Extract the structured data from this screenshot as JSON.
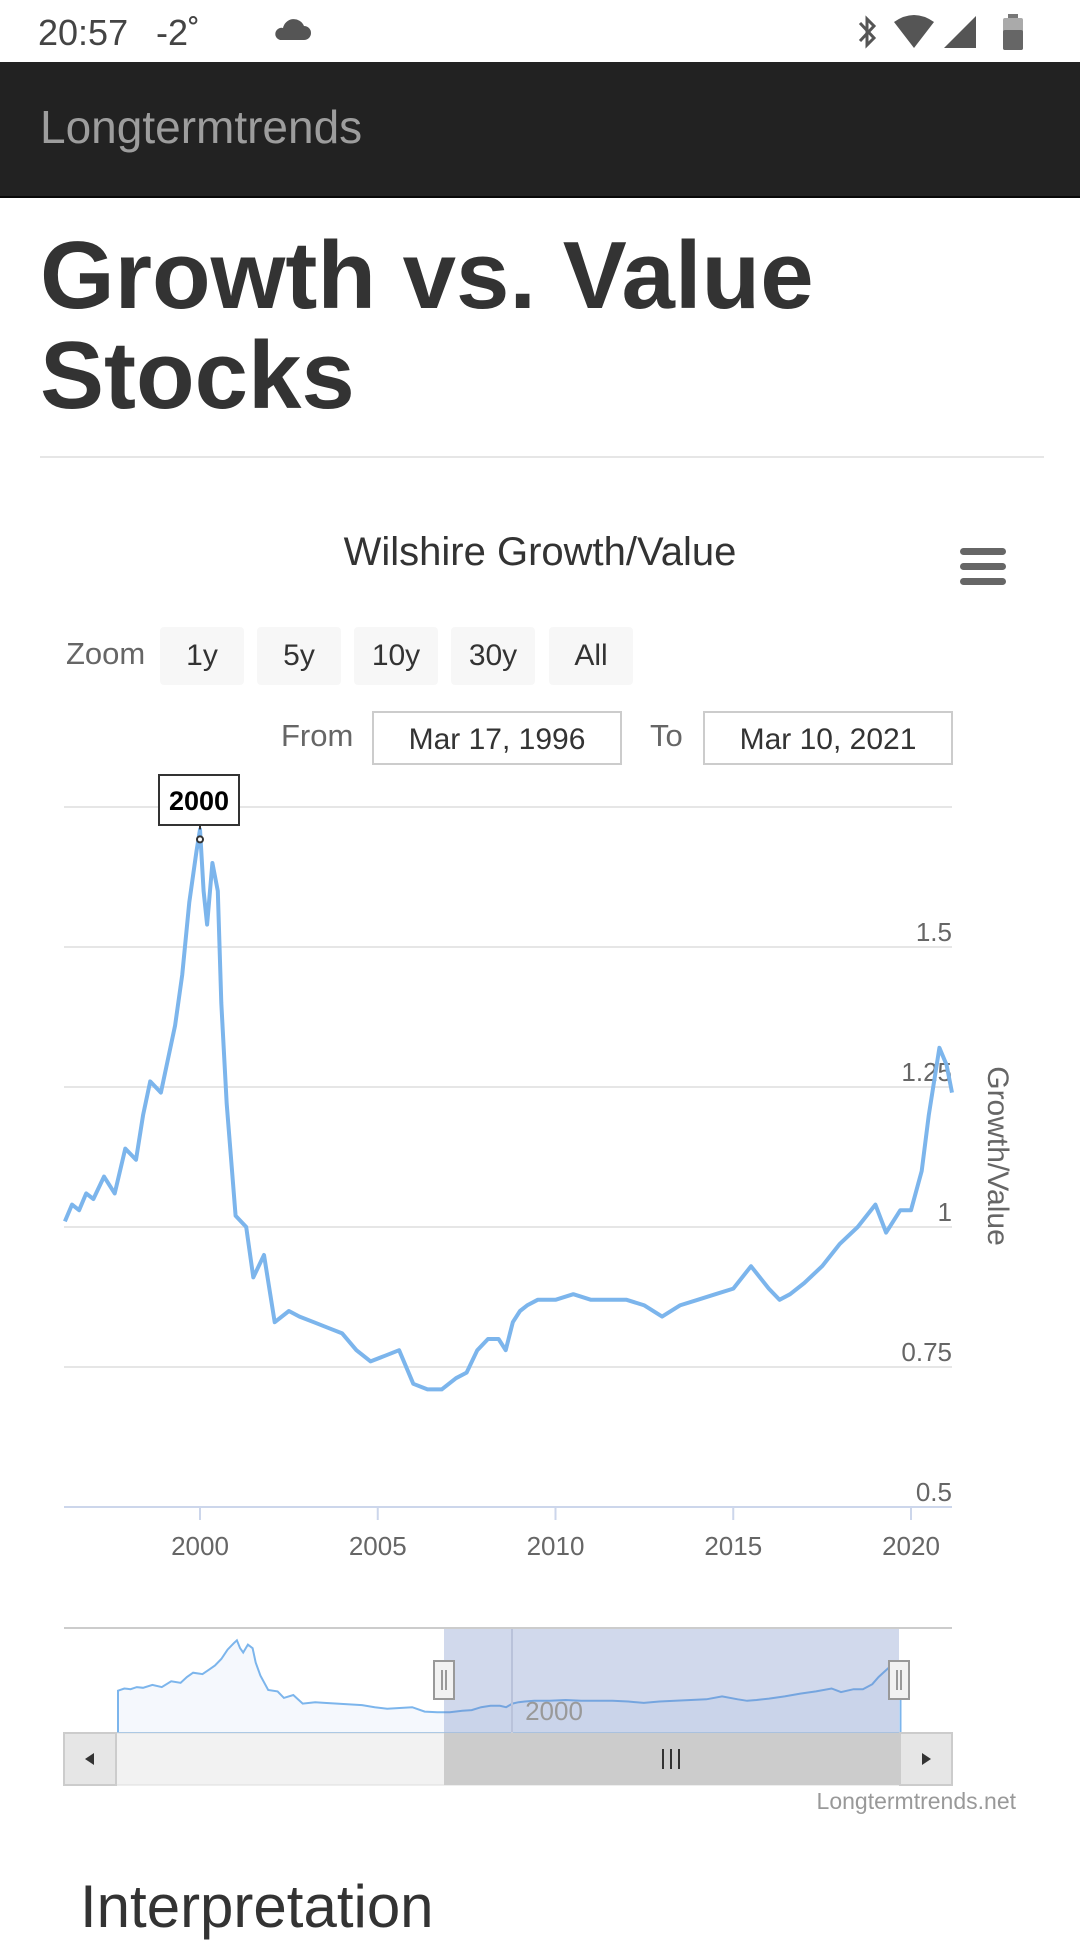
{
  "status_bar": {
    "time": "20:57",
    "temperature": "-2˚",
    "weather_icon": "cloud-icon",
    "icons": [
      "bluetooth-icon",
      "wifi-icon",
      "signal-icon",
      "battery-icon"
    ]
  },
  "navbar": {
    "brand": "Longtermtrends"
  },
  "page": {
    "title": "Growth vs. Value Stocks"
  },
  "chart": {
    "menu_icon": "hamburger-menu-icon",
    "zoom": {
      "label": "Zoom",
      "buttons": [
        "1y",
        "5y",
        "10y",
        "30y",
        "All"
      ]
    },
    "range": {
      "from_label": "From",
      "from_value": "Mar 17, 1996",
      "to_label": "To",
      "to_value": "Mar 10, 2021"
    },
    "flag_label": "2000",
    "navigator_label": "2000",
    "credit": "Longtermtrends.net"
  },
  "chart_data": {
    "type": "line",
    "title": "Wilshire Growth/Value",
    "xlabel": "",
    "ylabel": "Growth/Value",
    "xlim": [
      1996.2,
      2021.2
    ],
    "ylim": [
      0.5,
      1.75
    ],
    "x_ticks": [
      "2000",
      "2005",
      "2010",
      "2015",
      "2020"
    ],
    "y_ticks": [
      "0.5",
      "0.75",
      "1",
      "1.25",
      "1.5"
    ],
    "grid": true,
    "series": [
      {
        "x": [
          1996.2,
          1996.4,
          1996.6,
          1996.8,
          1997.0,
          1997.3,
          1997.6,
          1997.9,
          1998.2,
          1998.4,
          1998.6,
          1998.9,
          1999.1,
          1999.3,
          1999.5,
          1999.7,
          1999.9,
          2000.0,
          2000.1,
          2000.2,
          2000.35,
          2000.5,
          2000.6,
          2000.75,
          2001.0,
          2001.3,
          2001.5,
          2001.8,
          2002.1,
          2002.5,
          2002.8,
          2003.2,
          2003.6,
          2004.0,
          2004.4,
          2004.8,
          2005.2,
          2005.6,
          2006.0,
          2006.4,
          2006.8,
          2007.2,
          2007.5,
          2007.8,
          2008.1,
          2008.4,
          2008.6,
          2008.8,
          2009.0,
          2009.2,
          2009.5,
          2010.0,
          2010.5,
          2011.0,
          2011.5,
          2012.0,
          2012.5,
          2013.0,
          2013.5,
          2014.0,
          2014.5,
          2015.0,
          2015.5,
          2016.0,
          2016.3,
          2016.6,
          2017.0,
          2017.5,
          2018.0,
          2018.5,
          2019.0,
          2019.3,
          2019.7,
          2020.0,
          2020.3,
          2020.5,
          2020.8,
          2021.0,
          2021.2
        ],
        "y": [
          1.01,
          1.04,
          1.03,
          1.06,
          1.05,
          1.09,
          1.06,
          1.14,
          1.12,
          1.2,
          1.26,
          1.24,
          1.3,
          1.36,
          1.45,
          1.58,
          1.67,
          1.71,
          1.6,
          1.54,
          1.65,
          1.6,
          1.4,
          1.22,
          1.02,
          1.0,
          0.91,
          0.95,
          0.83,
          0.85,
          0.84,
          0.83,
          0.82,
          0.81,
          0.78,
          0.76,
          0.77,
          0.78,
          0.72,
          0.71,
          0.71,
          0.73,
          0.74,
          0.78,
          0.8,
          0.8,
          0.78,
          0.83,
          0.85,
          0.86,
          0.87,
          0.87,
          0.88,
          0.87,
          0.87,
          0.87,
          0.86,
          0.84,
          0.86,
          0.87,
          0.88,
          0.89,
          0.93,
          0.89,
          0.87,
          0.88,
          0.9,
          0.93,
          0.97,
          1.0,
          1.04,
          0.99,
          1.03,
          1.03,
          1.1,
          1.2,
          1.32,
          1.29,
          1.24
        ]
      }
    ]
  }
}
